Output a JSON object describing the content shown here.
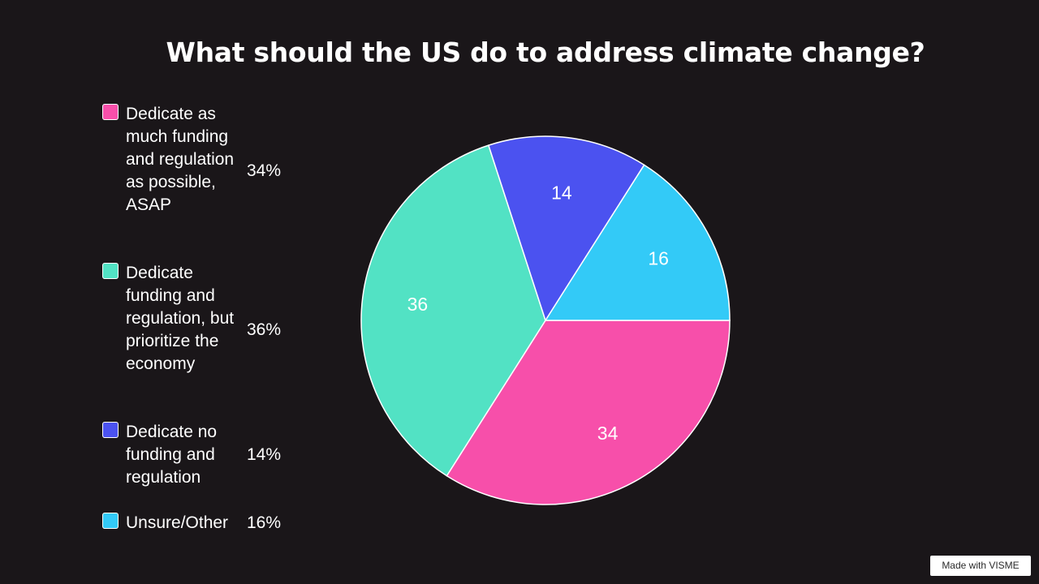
{
  "chart_data": {
    "type": "pie",
    "title": "What should the US do to address climate change?",
    "slices": [
      {
        "label": "Dedicate as much funding and regulation as possible, ASAP",
        "value": 34,
        "percent_label": "34%",
        "color": "#f74faa"
      },
      {
        "label": "Dedicate funding and regulation, but prioritize the economy",
        "value": 36,
        "percent_label": "36%",
        "color": "#52e2c4"
      },
      {
        "label": "Dedicate no funding and regulation",
        "value": 14,
        "percent_label": "14%",
        "color": "#4b52f0"
      },
      {
        "label": "Unsure/Other",
        "value": 16,
        "percent_label": "16%",
        "color": "#33caf7"
      }
    ],
    "legend_placement": "left"
  },
  "watermark": "Made with VISME",
  "colors": {
    "background": "#1a1619"
  }
}
